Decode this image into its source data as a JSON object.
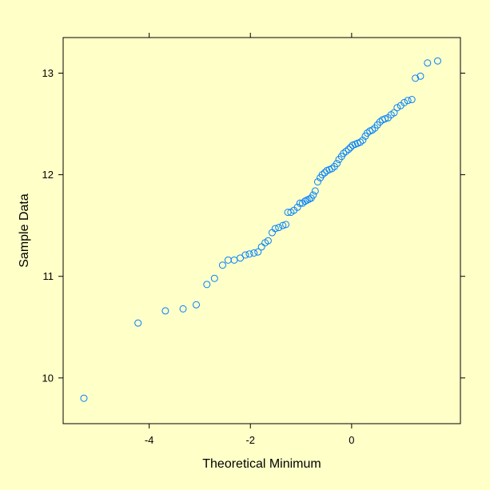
{
  "chart_data": {
    "type": "scatter",
    "title": "",
    "xlabel": "Theoretical Minimum",
    "ylabel": "Sample Data",
    "xlim": [
      -5.7,
      2.15
    ],
    "ylim": [
      9.55,
      13.35
    ],
    "xticks": [
      -4,
      -2,
      0
    ],
    "xtick_labels": [
      "-4",
      "-2",
      "0"
    ],
    "yticks": [
      10,
      11,
      12,
      13
    ],
    "ytick_labels": [
      "10",
      "11",
      "12",
      "13"
    ],
    "grid": false,
    "legend": "none",
    "marker": "open-circle",
    "color": "#0080ff",
    "points": [
      [
        -5.29,
        9.8
      ],
      [
        -4.22,
        10.54
      ],
      [
        -3.68,
        10.66
      ],
      [
        -3.33,
        10.68
      ],
      [
        -3.07,
        10.72
      ],
      [
        -2.86,
        10.92
      ],
      [
        -2.71,
        10.98
      ],
      [
        -2.55,
        11.11
      ],
      [
        -2.44,
        11.16
      ],
      [
        -2.32,
        11.16
      ],
      [
        -2.2,
        11.18
      ],
      [
        -2.1,
        11.21
      ],
      [
        -2.02,
        11.22
      ],
      [
        -1.93,
        11.23
      ],
      [
        -1.85,
        11.24
      ],
      [
        -1.78,
        11.29
      ],
      [
        -1.71,
        11.33
      ],
      [
        -1.65,
        11.35
      ],
      [
        -1.57,
        11.43
      ],
      [
        -1.51,
        11.47
      ],
      [
        -1.44,
        11.48
      ],
      [
        -1.36,
        11.5
      ],
      [
        -1.3,
        11.51
      ],
      [
        -1.26,
        11.63
      ],
      [
        -1.2,
        11.63
      ],
      [
        -1.14,
        11.65
      ],
      [
        -1.07,
        11.68
      ],
      [
        -1.02,
        11.72
      ],
      [
        -0.97,
        11.72
      ],
      [
        -0.92,
        11.74
      ],
      [
        -0.88,
        11.75
      ],
      [
        -0.84,
        11.76
      ],
      [
        -0.8,
        11.77
      ],
      [
        -0.76,
        11.8
      ],
      [
        -0.72,
        11.84
      ],
      [
        -0.67,
        11.93
      ],
      [
        -0.62,
        11.97
      ],
      [
        -0.58,
        12.0
      ],
      [
        -0.53,
        12.02
      ],
      [
        -0.49,
        12.04
      ],
      [
        -0.44,
        12.05
      ],
      [
        -0.39,
        12.06
      ],
      [
        -0.34,
        12.08
      ],
      [
        -0.29,
        12.11
      ],
      [
        -0.25,
        12.15
      ],
      [
        -0.2,
        12.18
      ],
      [
        -0.16,
        12.21
      ],
      [
        -0.11,
        12.23
      ],
      [
        -0.06,
        12.25
      ],
      [
        -0.02,
        12.27
      ],
      [
        0.02,
        12.29
      ],
      [
        0.07,
        12.3
      ],
      [
        0.12,
        12.31
      ],
      [
        0.17,
        12.32
      ],
      [
        0.22,
        12.34
      ],
      [
        0.27,
        12.38
      ],
      [
        0.31,
        12.41
      ],
      [
        0.36,
        12.43
      ],
      [
        0.41,
        12.44
      ],
      [
        0.46,
        12.46
      ],
      [
        0.51,
        12.49
      ],
      [
        0.56,
        12.52
      ],
      [
        0.61,
        12.54
      ],
      [
        0.66,
        12.55
      ],
      [
        0.72,
        12.56
      ],
      [
        0.78,
        12.59
      ],
      [
        0.84,
        12.61
      ],
      [
        0.9,
        12.66
      ],
      [
        0.97,
        12.68
      ],
      [
        1.04,
        12.71
      ],
      [
        1.11,
        12.73
      ],
      [
        1.19,
        12.74
      ],
      [
        1.26,
        12.95
      ],
      [
        1.36,
        12.97
      ],
      [
        1.5,
        13.1
      ],
      [
        1.7,
        13.12
      ]
    ]
  }
}
